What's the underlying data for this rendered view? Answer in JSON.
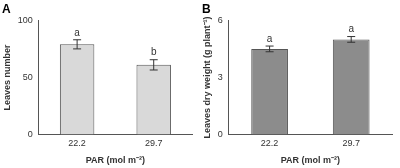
{
  "chart_data": [
    {
      "type": "bar",
      "title": "A",
      "x_label": "PAR (mol m⁻²)",
      "y_label": "Leaves number",
      "categories": [
        "22.2",
        "29.7"
      ],
      "values": [
        79,
        61
      ],
      "errors": [
        4,
        4.5
      ],
      "annotations": [
        "a",
        "b"
      ],
      "color": "#d9d9d9",
      "ylim": [
        0,
        100
      ],
      "yticks": [
        0,
        50,
        100
      ],
      "grid": false
    },
    {
      "type": "bar",
      "title": "B",
      "x_label": "PAR (mol m⁻²)",
      "y_label": "Leaves dry weight (g plant⁻¹)",
      "categories": [
        "22.2",
        "29.7"
      ],
      "values": [
        4.5,
        5.0
      ],
      "errors": [
        0.15,
        0.15
      ],
      "annotations": [
        "a",
        "a"
      ],
      "color": "#8c8c8c",
      "ylim": [
        0,
        6
      ],
      "yticks": [
        0,
        3,
        6
      ],
      "grid": false
    }
  ]
}
